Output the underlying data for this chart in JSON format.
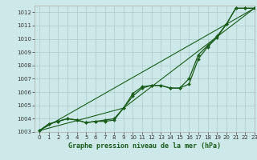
{
  "background_color": "#cce8e8",
  "grid_color": "#aacccc",
  "line_color": "#1a5c1a",
  "marker_color": "#1a5c1a",
  "xlabel": "Graphe pression niveau de la mer (hPa)",
  "xlabel_fontsize": 6.0,
  "tick_fontsize": 5.0,
  "ylim": [
    1003,
    1012.5
  ],
  "xlim": [
    -0.5,
    23
  ],
  "yticks": [
    1003,
    1004,
    1005,
    1006,
    1007,
    1008,
    1009,
    1010,
    1011,
    1012
  ],
  "xticks": [
    0,
    1,
    2,
    3,
    4,
    5,
    6,
    7,
    8,
    9,
    10,
    11,
    12,
    13,
    14,
    15,
    16,
    17,
    18,
    19,
    20,
    21,
    22,
    23
  ],
  "series1_x": [
    0,
    1,
    2,
    3,
    4,
    5,
    6,
    7,
    8,
    9,
    10,
    11,
    12,
    13,
    14,
    15,
    16,
    17,
    18,
    19,
    20,
    21,
    22,
    23
  ],
  "series1_y": [
    1003.1,
    1003.6,
    1003.8,
    1004.0,
    1003.9,
    1003.7,
    1003.8,
    1003.8,
    1003.9,
    1004.8,
    1005.7,
    1006.3,
    1006.5,
    1006.5,
    1006.3,
    1006.3,
    1006.6,
    1008.5,
    1009.4,
    1010.1,
    1011.1,
    1012.3,
    1012.3,
    1012.3
  ],
  "series2_x": [
    0,
    1,
    2,
    3,
    4,
    5,
    6,
    7,
    8,
    9,
    10,
    11,
    12,
    13,
    14,
    15,
    16,
    17,
    18,
    19,
    20,
    21,
    22,
    23
  ],
  "series2_y": [
    1003.1,
    1003.6,
    1003.8,
    1004.0,
    1003.9,
    1003.7,
    1003.8,
    1003.9,
    1004.0,
    1004.8,
    1005.9,
    1006.4,
    1006.5,
    1006.5,
    1006.3,
    1006.3,
    1007.0,
    1008.8,
    1009.5,
    1010.2,
    1011.1,
    1012.3,
    1012.3,
    1012.3
  ],
  "series3_x": [
    0,
    23
  ],
  "series3_y": [
    1003.1,
    1012.3
  ],
  "series4_x": [
    0,
    9,
    23
  ],
  "series4_y": [
    1003.1,
    1004.8,
    1012.3
  ]
}
